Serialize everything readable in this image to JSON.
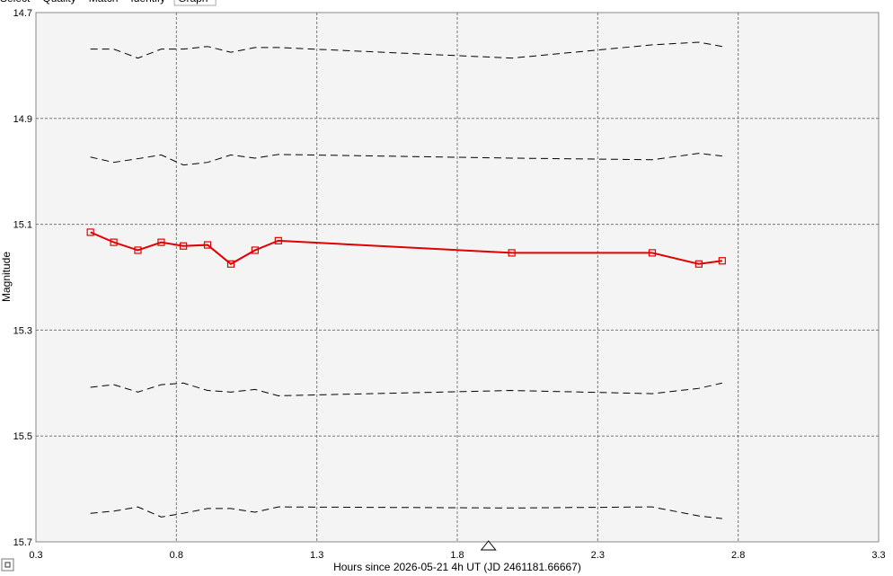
{
  "tabs": [
    "Select",
    "Quality",
    "Match",
    "Identify",
    "Graph"
  ],
  "chart_data": {
    "type": "line",
    "xlabel": "Hours since 2026-05-21 4h UT (JD 2461181.66667)",
    "ylabel": "Magnitude",
    "x": [
      0.494,
      0.577,
      0.663,
      0.746,
      0.825,
      0.911,
      0.994,
      1.08,
      1.163,
      1.994,
      2.494,
      2.66,
      2.743
    ],
    "series": [
      {
        "color": "#000000",
        "dashed": true,
        "markers": false,
        "values": [
          14.769,
          14.769,
          14.786,
          14.769,
          14.769,
          14.764,
          14.775,
          14.766,
          14.766,
          14.786,
          14.761,
          14.756,
          14.764
        ]
      },
      {
        "color": "#000000",
        "dashed": true,
        "markers": false,
        "values": [
          14.973,
          14.983,
          14.976,
          14.969,
          14.988,
          14.983,
          14.969,
          14.975,
          14.968,
          14.975,
          14.978,
          14.966,
          14.971
        ]
      },
      {
        "color": "#e00000",
        "dashed": false,
        "markers": true,
        "values": [
          15.115,
          15.134,
          15.149,
          15.134,
          15.141,
          15.139,
          15.175,
          15.149,
          15.131,
          15.154,
          15.154,
          15.175,
          15.169
        ]
      },
      {
        "color": "#000000",
        "dashed": true,
        "markers": false,
        "values": [
          15.408,
          15.403,
          15.417,
          15.403,
          15.4,
          15.414,
          15.417,
          15.412,
          15.424,
          15.414,
          15.42,
          15.41,
          15.4
        ]
      },
      {
        "color": "#000000",
        "dashed": true,
        "markers": false,
        "values": [
          15.646,
          15.642,
          15.634,
          15.653,
          15.646,
          15.637,
          15.637,
          15.644,
          15.634,
          15.636,
          15.634,
          15.651,
          15.656
        ]
      }
    ],
    "marker_x": 1.911,
    "xlim": [
      0.3,
      3.3
    ],
    "xticks": [
      0.3,
      0.8,
      1.3,
      1.8,
      2.3,
      2.8,
      3.3
    ],
    "ylim": [
      15.7,
      14.7
    ],
    "yticks": [
      14.7,
      14.9,
      15.1,
      15.3,
      15.5,
      15.7
    ],
    "grid": true
  }
}
